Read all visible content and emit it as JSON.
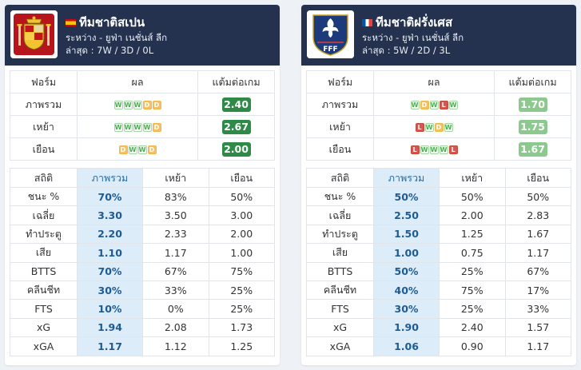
{
  "teams": [
    {
      "id": "spain",
      "flag": "spain-flag-icon",
      "crest": "spain-crest-icon",
      "title": "ทีมชาติสเปน",
      "subtitle": "ระหว่าง - ยูฟ่า เนชั่นส์ ลีก",
      "recent": "ล่าสุด : 7W / 3D / 0L",
      "form_headers": [
        "ฟอร์ม",
        "ผล",
        "แต้มต่อเกม"
      ],
      "form_rows": [
        {
          "label": "ภาพรวม",
          "results": [
            "W",
            "W",
            "W",
            "D",
            "D"
          ],
          "ppg": "2.40",
          "tone": "dark"
        },
        {
          "label": "เหย้า",
          "results": [
            "W",
            "W",
            "W",
            "W",
            "D"
          ],
          "ppg": "2.67",
          "tone": "dark"
        },
        {
          "label": "เยือน",
          "results": [
            "D",
            "W",
            "W",
            "D"
          ],
          "ppg": "2.00",
          "tone": "dark"
        }
      ],
      "stats_headers": [
        "สถิติ",
        "ภาพรวม",
        "เหย้า",
        "เยือน"
      ],
      "stats_rows": [
        {
          "label": "ชนะ %",
          "overall": "70%",
          "home": "83%",
          "away": "50%"
        },
        {
          "label": "เฉลี่ย",
          "overall": "3.30",
          "home": "3.50",
          "away": "3.00"
        },
        {
          "label": "ทำประตู",
          "overall": "2.20",
          "home": "2.33",
          "away": "2.00"
        },
        {
          "label": "เสีย",
          "overall": "1.10",
          "home": "1.17",
          "away": "1.00"
        },
        {
          "label": "BTTS",
          "overall": "70%",
          "home": "67%",
          "away": "75%"
        },
        {
          "label": "คลีนชีท",
          "overall": "30%",
          "home": "33%",
          "away": "25%"
        },
        {
          "label": "FTS",
          "overall": "10%",
          "home": "0%",
          "away": "25%"
        },
        {
          "label": "xG",
          "overall": "1.94",
          "home": "2.08",
          "away": "1.73"
        },
        {
          "label": "xGA",
          "overall": "1.17",
          "home": "1.12",
          "away": "1.25"
        }
      ]
    },
    {
      "id": "france",
      "flag": "france-flag-icon",
      "crest": "france-crest-icon",
      "crest_text": "FFF",
      "title": "ทีมชาติฝรั่งเศส",
      "subtitle": "ระหว่าง - ยูฟ่า เนชั่นส์ ลีก",
      "recent": "ล่าสุด : 5W / 2D / 3L",
      "form_headers": [
        "ฟอร์ม",
        "ผล",
        "แต้มต่อเกม"
      ],
      "form_rows": [
        {
          "label": "ภาพรวม",
          "results": [
            "W",
            "D",
            "W",
            "L",
            "W"
          ],
          "ppg": "1.70",
          "tone": "light"
        },
        {
          "label": "เหย้า",
          "results": [
            "L",
            "W",
            "D",
            "W"
          ],
          "ppg": "1.75",
          "tone": "light"
        },
        {
          "label": "เยือน",
          "results": [
            "L",
            "W",
            "W",
            "W",
            "L"
          ],
          "ppg": "1.67",
          "tone": "light"
        }
      ],
      "stats_headers": [
        "สถิติ",
        "ภาพรวม",
        "เหย้า",
        "เยือน"
      ],
      "stats_rows": [
        {
          "label": "ชนะ %",
          "overall": "50%",
          "home": "50%",
          "away": "50%"
        },
        {
          "label": "เฉลี่ย",
          "overall": "2.50",
          "home": "2.00",
          "away": "2.83"
        },
        {
          "label": "ทำประตู",
          "overall": "1.50",
          "home": "1.25",
          "away": "1.67"
        },
        {
          "label": "เสีย",
          "overall": "1.00",
          "home": "0.75",
          "away": "1.17"
        },
        {
          "label": "BTTS",
          "overall": "50%",
          "home": "25%",
          "away": "67%"
        },
        {
          "label": "คลีนชีท",
          "overall": "40%",
          "home": "75%",
          "away": "17%"
        },
        {
          "label": "FTS",
          "overall": "30%",
          "home": "25%",
          "away": "33%"
        },
        {
          "label": "xG",
          "overall": "1.90",
          "home": "2.40",
          "away": "1.57"
        },
        {
          "label": "xGA",
          "overall": "1.06",
          "home": "0.90",
          "away": "1.17"
        }
      ]
    }
  ],
  "colors": {
    "header_bg": "#24324f",
    "win": "#4caf50",
    "draw": "#f5c062",
    "loss": "#d9534f",
    "ppg_dark": "#2e8b47",
    "ppg_light": "#8cc98f",
    "overall_highlight": "#dcedf9"
  }
}
